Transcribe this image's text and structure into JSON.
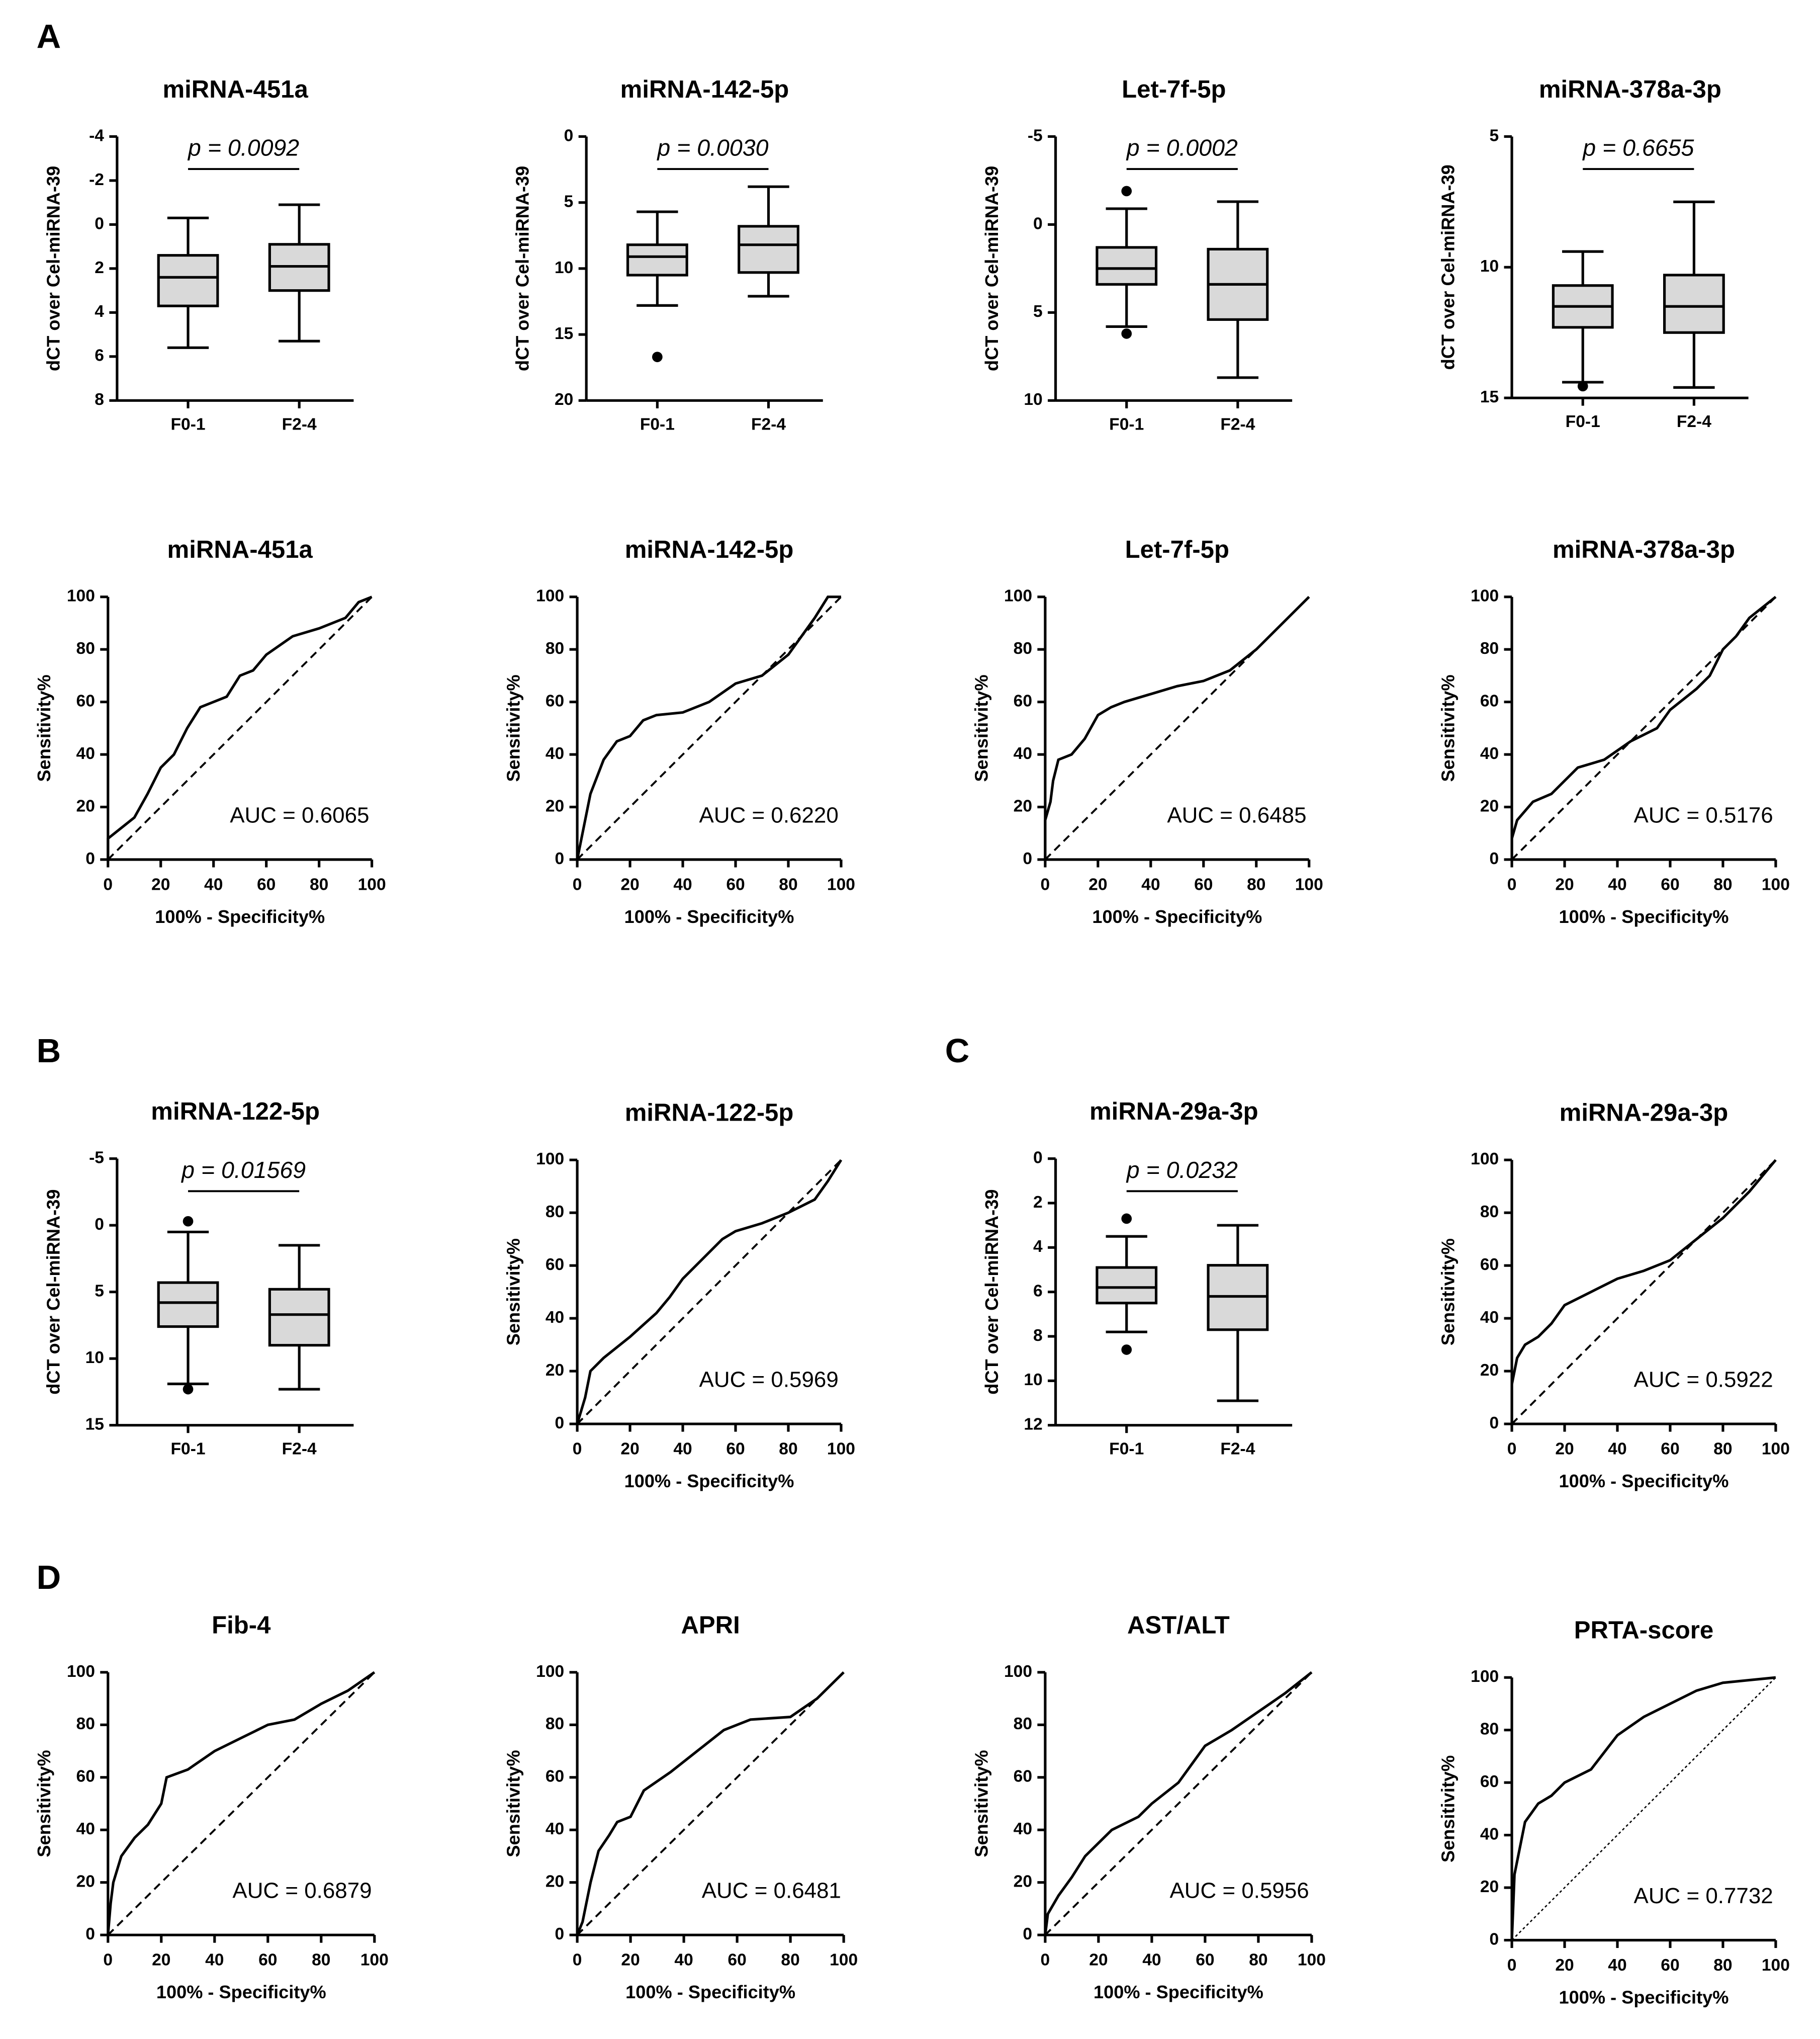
{
  "panel_labels": [
    "A",
    "B",
    "C",
    "D"
  ],
  "chart_data": [
    {
      "type": "box",
      "title": "miRNA-451a",
      "annotation": "p = 0.0092",
      "ylabel": "dCT over Cel-miRNA-39",
      "categories": [
        "F0-1",
        "F2-4"
      ],
      "y_reversed": true,
      "ylim": [
        -4,
        8
      ],
      "yticks": [
        -4,
        -2,
        0,
        2,
        4,
        6,
        8
      ],
      "boxes": [
        {
          "min": -0.3,
          "q1": 1.4,
          "median": 2.4,
          "q3": 3.7,
          "max": 5.6,
          "outliers": []
        },
        {
          "min": -0.9,
          "q1": 0.9,
          "median": 1.9,
          "q3": 3.0,
          "max": 5.3,
          "outliers": []
        }
      ],
      "color": "#d9d9d9"
    },
    {
      "type": "box",
      "title": "miRNA-142-5p",
      "annotation": "p = 0.0030",
      "ylabel": "dCT over Cel-miRNA-39",
      "categories": [
        "F0-1",
        "F2-4"
      ],
      "y_reversed": true,
      "ylim": [
        0,
        20
      ],
      "yticks": [
        0,
        5,
        10,
        15,
        20
      ],
      "boxes": [
        {
          "min": 5.7,
          "q1": 8.2,
          "median": 9.1,
          "q3": 10.5,
          "max": 12.8,
          "outliers": [
            16.7
          ]
        },
        {
          "min": 3.8,
          "q1": 6.8,
          "median": 8.2,
          "q3": 10.3,
          "max": 12.1,
          "outliers": []
        }
      ],
      "color": "#d9d9d9"
    },
    {
      "type": "box",
      "title": "Let-7f-5p",
      "annotation": "p = 0.0002",
      "ylabel": "dCT over Cel-miRNA-39",
      "categories": [
        "F0-1",
        "F2-4"
      ],
      "y_reversed": true,
      "ylim": [
        -5,
        10
      ],
      "yticks": [
        -5,
        0,
        5,
        10
      ],
      "boxes": [
        {
          "min": -0.9,
          "q1": 1.3,
          "median": 2.5,
          "q3": 3.4,
          "max": 5.8,
          "outliers": [
            -1.9,
            6.2
          ]
        },
        {
          "min": -1.3,
          "q1": 1.4,
          "median": 3.4,
          "q3": 5.4,
          "max": 8.7,
          "outliers": []
        }
      ],
      "color": "#d9d9d9"
    },
    {
      "type": "box",
      "title": "miRNA-378a-3p",
      "annotation": "p = 0.6655",
      "ylabel": "dCT over Cel-miRNA-39",
      "categories": [
        "F0-1",
        "F2-4"
      ],
      "y_reversed": true,
      "ylim": [
        5,
        15
      ],
      "yticks": [
        5,
        10,
        15
      ],
      "boxes": [
        {
          "min": 9.4,
          "q1": 10.7,
          "median": 11.5,
          "q3": 12.3,
          "max": 14.4,
          "outliers": [
            14.55
          ]
        },
        {
          "min": 7.5,
          "q1": 10.3,
          "median": 11.5,
          "q3": 12.5,
          "max": 14.6,
          "outliers": []
        }
      ],
      "color": "#d9d9d9"
    },
    {
      "type": "roc",
      "title": "miRNA-451a",
      "annotation": "AUC = 0.6065",
      "xlabel": "100% - Specificity%",
      "ylabel": "Sensitivity%",
      "xlim": [
        0,
        100
      ],
      "ylim": [
        0,
        100
      ],
      "xticks": [
        0,
        20,
        40,
        60,
        80,
        100
      ],
      "yticks": [
        0,
        20,
        40,
        60,
        80,
        100
      ],
      "reference_style": "dashed",
      "x": [
        0,
        0,
        5,
        10,
        15,
        20,
        25,
        30,
        35,
        40,
        45,
        50,
        55,
        60,
        70,
        80,
        90,
        95,
        100
      ],
      "values": [
        0,
        8,
        12,
        16,
        25,
        35,
        40,
        50,
        58,
        60,
        62,
        70,
        72,
        78,
        85,
        88,
        92,
        98,
        100
      ]
    },
    {
      "type": "roc",
      "title": "miRNA-142-5p",
      "annotation": "AUC = 0.6220",
      "xlabel": "100% - Specificity%",
      "ylabel": "Sensitivity%",
      "xlim": [
        0,
        100
      ],
      "ylim": [
        0,
        100
      ],
      "xticks": [
        0,
        20,
        40,
        60,
        80,
        100
      ],
      "yticks": [
        0,
        20,
        40,
        60,
        80,
        100
      ],
      "reference_style": "dashed",
      "x": [
        0,
        2,
        5,
        10,
        15,
        20,
        25,
        30,
        40,
        50,
        60,
        70,
        80,
        85,
        90,
        95,
        100
      ],
      "values": [
        0,
        10,
        25,
        38,
        45,
        47,
        53,
        55,
        56,
        60,
        67,
        70,
        78,
        85,
        92,
        100,
        100
      ]
    },
    {
      "type": "roc",
      "title": "Let-7f-5p",
      "annotation": "AUC = 0.6485",
      "xlabel": "100% - Specificity%",
      "ylabel": "Sensitivity%",
      "xlim": [
        0,
        100
      ],
      "ylim": [
        0,
        100
      ],
      "xticks": [
        0,
        20,
        40,
        60,
        80,
        100
      ],
      "yticks": [
        0,
        20,
        40,
        60,
        80,
        100
      ],
      "reference_style": "dashed",
      "x": [
        0,
        0,
        2,
        3,
        5,
        10,
        15,
        20,
        25,
        30,
        40,
        50,
        60,
        70,
        80,
        90,
        100
      ],
      "values": [
        0,
        15,
        22,
        30,
        38,
        40,
        46,
        55,
        58,
        60,
        63,
        66,
        68,
        72,
        80,
        90,
        100
      ]
    },
    {
      "type": "roc",
      "title": "miRNA-378a-3p",
      "annotation": "AUC = 0.5176",
      "xlabel": "100% - Specificity%",
      "ylabel": "Sensitivity%",
      "xlim": [
        0,
        100
      ],
      "ylim": [
        0,
        100
      ],
      "xticks": [
        0,
        20,
        40,
        60,
        80,
        100
      ],
      "yticks": [
        0,
        20,
        40,
        60,
        80,
        100
      ],
      "reference_style": "dashed",
      "x": [
        0,
        0,
        2,
        8,
        15,
        20,
        25,
        35,
        45,
        55,
        60,
        70,
        75,
        80,
        85,
        90,
        100
      ],
      "values": [
        0,
        8,
        15,
        22,
        25,
        30,
        35,
        38,
        45,
        50,
        57,
        65,
        70,
        80,
        85,
        92,
        100
      ]
    },
    {
      "type": "box",
      "title": "miRNA-122-5p",
      "annotation": "p = 0.01569",
      "ylabel": "dCT over Cel-miRNA-39",
      "categories": [
        "F0-1",
        "F2-4"
      ],
      "y_reversed": true,
      "ylim": [
        -5,
        15
      ],
      "yticks": [
        -5,
        0,
        5,
        10,
        15
      ],
      "boxes": [
        {
          "min": 0.5,
          "q1": 4.3,
          "median": 5.8,
          "q3": 7.6,
          "max": 11.9,
          "outliers": [
            -0.3,
            12.3
          ]
        },
        {
          "min": 1.5,
          "q1": 4.8,
          "median": 6.7,
          "q3": 9.0,
          "max": 12.3,
          "outliers": []
        }
      ],
      "color": "#d9d9d9"
    },
    {
      "type": "roc",
      "title": "miRNA-122-5p",
      "annotation": "AUC = 0.5969",
      "xlabel": "100% - Specificity%",
      "ylabel": "Sensitivity%",
      "xlim": [
        0,
        100
      ],
      "ylim": [
        0,
        100
      ],
      "xticks": [
        0,
        20,
        40,
        60,
        80,
        100
      ],
      "yticks": [
        0,
        20,
        40,
        60,
        80,
        100
      ],
      "reference_style": "dashed",
      "x": [
        0,
        3,
        5,
        10,
        20,
        30,
        35,
        40,
        45,
        55,
        60,
        70,
        80,
        90,
        95,
        100
      ],
      "values": [
        0,
        10,
        20,
        25,
        33,
        42,
        48,
        55,
        60,
        70,
        73,
        76,
        80,
        85,
        92,
        100
      ]
    },
    {
      "type": "box",
      "title": "miRNA-29a-3p",
      "annotation": "p = 0.0232",
      "ylabel": "dCT over Cel-miRNA-39",
      "categories": [
        "F0-1",
        "F2-4"
      ],
      "y_reversed": true,
      "ylim": [
        0,
        12
      ],
      "yticks": [
        0,
        2,
        4,
        6,
        8,
        10,
        12
      ],
      "boxes": [
        {
          "min": 3.5,
          "q1": 4.9,
          "median": 5.8,
          "q3": 6.5,
          "max": 7.8,
          "outliers": [
            2.7,
            8.6
          ]
        },
        {
          "min": 3.0,
          "q1": 4.8,
          "median": 6.2,
          "q3": 7.7,
          "max": 10.9,
          "outliers": []
        }
      ],
      "color": "#d9d9d9"
    },
    {
      "type": "roc",
      "title": "miRNA-29a-3p",
      "annotation": "AUC = 0.5922",
      "xlabel": "100% - Specificity%",
      "ylabel": "Sensitivity%",
      "xlim": [
        0,
        100
      ],
      "ylim": [
        0,
        100
      ],
      "xticks": [
        0,
        20,
        40,
        60,
        80,
        100
      ],
      "yticks": [
        0,
        20,
        40,
        60,
        80,
        100
      ],
      "reference_style": "dashed",
      "x": [
        0,
        0,
        2,
        5,
        10,
        15,
        20,
        30,
        40,
        50,
        60,
        70,
        80,
        90,
        100
      ],
      "values": [
        0,
        15,
        25,
        30,
        33,
        38,
        45,
        50,
        55,
        58,
        62,
        70,
        78,
        88,
        100
      ]
    },
    {
      "type": "roc",
      "title": "Fib-4",
      "annotation": "AUC = 0.6879",
      "xlabel": "100% - Specificity%",
      "ylabel": "Sensitivity%",
      "xlim": [
        0,
        100
      ],
      "ylim": [
        0,
        100
      ],
      "xticks": [
        0,
        20,
        40,
        60,
        80,
        100
      ],
      "yticks": [
        0,
        20,
        40,
        60,
        80,
        100
      ],
      "reference_style": "dashed",
      "x": [
        0,
        1,
        2,
        5,
        10,
        15,
        20,
        22,
        30,
        40,
        50,
        60,
        70,
        80,
        90,
        100
      ],
      "values": [
        0,
        12,
        20,
        30,
        37,
        42,
        50,
        60,
        63,
        70,
        75,
        80,
        82,
        88,
        93,
        100
      ]
    },
    {
      "type": "roc",
      "title": "APRI",
      "annotation": "AUC = 0.6481",
      "xlabel": "100% - Specificity%",
      "ylabel": "Sensitivity%",
      "xlim": [
        0,
        100
      ],
      "ylim": [
        0,
        100
      ],
      "xticks": [
        0,
        20,
        40,
        60,
        80,
        100
      ],
      "yticks": [
        0,
        20,
        40,
        60,
        80,
        100
      ],
      "reference_style": "dashed",
      "x": [
        0,
        2,
        5,
        8,
        12,
        15,
        20,
        25,
        35,
        45,
        55,
        65,
        80,
        90,
        100
      ],
      "values": [
        0,
        5,
        20,
        32,
        38,
        43,
        45,
        55,
        62,
        70,
        78,
        82,
        83,
        90,
        100
      ]
    },
    {
      "type": "roc",
      "title": "AST/ALT",
      "annotation": "AUC = 0.5956",
      "xlabel": "100% - Specificity%",
      "ylabel": "Sensitivity%",
      "xlim": [
        0,
        100
      ],
      "ylim": [
        0,
        100
      ],
      "xticks": [
        0,
        20,
        40,
        60,
        80,
        100
      ],
      "yticks": [
        0,
        20,
        40,
        60,
        80,
        100
      ],
      "reference_style": "dashed",
      "x": [
        0,
        1,
        5,
        10,
        15,
        20,
        25,
        35,
        40,
        50,
        55,
        60,
        70,
        80,
        90,
        100
      ],
      "values": [
        0,
        8,
        15,
        22,
        30,
        35,
        40,
        45,
        50,
        58,
        65,
        72,
        78,
        85,
        92,
        100
      ]
    },
    {
      "type": "roc",
      "title": "PRTA-score",
      "annotation": "AUC = 0.7732",
      "xlabel": "100% - Specificity%",
      "ylabel": "Sensitivity%",
      "xlim": [
        0,
        100
      ],
      "ylim": [
        0,
        100
      ],
      "xticks": [
        0,
        20,
        40,
        60,
        80,
        100
      ],
      "yticks": [
        0,
        20,
        40,
        60,
        80,
        100
      ],
      "reference_style": "dotted",
      "x": [
        0,
        1,
        3,
        5,
        10,
        15,
        20,
        30,
        40,
        50,
        60,
        70,
        80,
        90,
        100
      ],
      "values": [
        0,
        25,
        35,
        45,
        52,
        55,
        60,
        65,
        78,
        85,
        90,
        95,
        98,
        99,
        100
      ]
    }
  ]
}
